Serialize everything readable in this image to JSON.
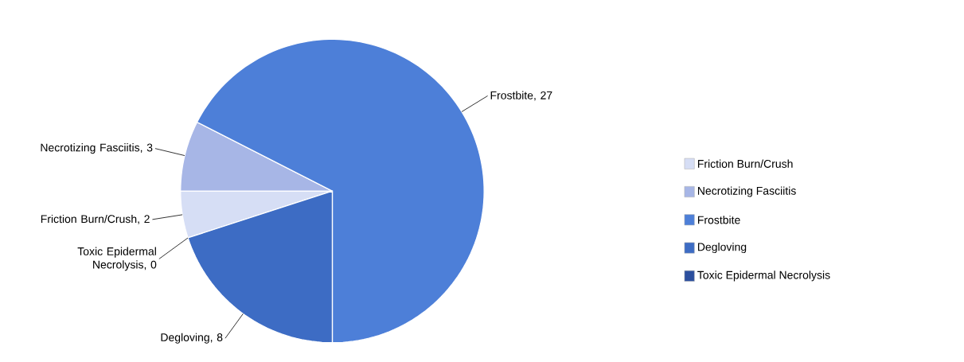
{
  "chart_data": {
    "type": "pie",
    "categories": [
      "Friction Burn/Crush",
      "Necrotizing Fasciitis",
      "Frostbite",
      "Degloving",
      "Toxic Epidermal Necrolysis"
    ],
    "values": [
      2,
      3,
      27,
      8,
      0
    ],
    "colors": [
      "#d6def5",
      "#a7b6e6",
      "#4d7fd8",
      "#3d6cc4",
      "#2c4f9e"
    ],
    "value_labels": [
      "Friction Burn/Crush, 2",
      "Necrotizing Fasciitis, 3",
      "Frostbite, 27",
      "Degloving, 8",
      "Toxic Epidermal Necrolysis, 0"
    ],
    "legend": "right"
  }
}
